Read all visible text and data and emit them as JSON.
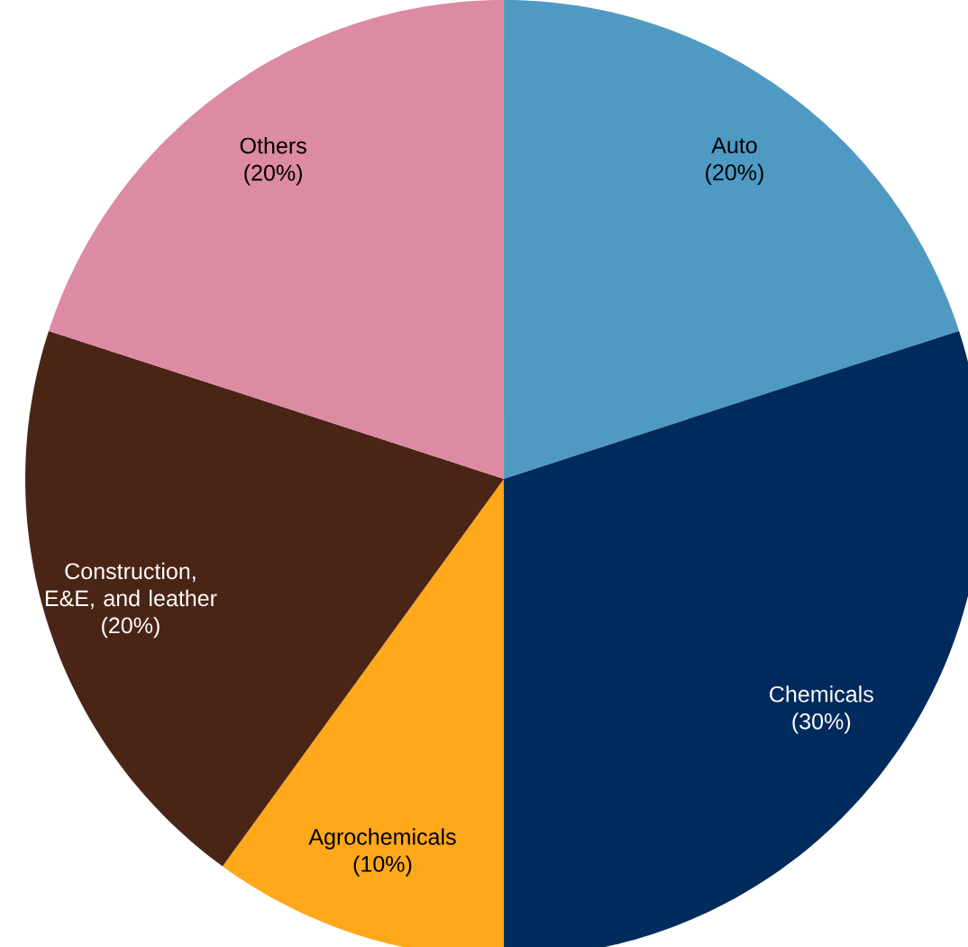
{
  "chart_data": {
    "type": "pie",
    "categories": [
      "Auto",
      "Chemicals",
      "Agrochemicals",
      "Construction, E&E, and leather",
      "Others"
    ],
    "values": [
      20,
      30,
      10,
      20,
      20
    ],
    "value_labels": [
      "(20%)",
      "(30%)",
      "(10%)",
      "(20%)",
      "(20%)"
    ],
    "colors": [
      "#4f9ac3",
      "#002b5c",
      "#fea81a",
      "#4a2516",
      "#dd8aa3"
    ]
  }
}
